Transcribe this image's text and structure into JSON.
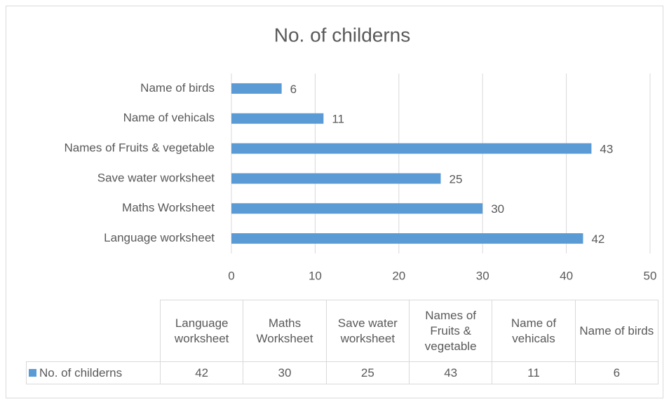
{
  "chart_data": {
    "type": "bar",
    "orientation": "horizontal",
    "title": "No. of childerns",
    "categories": [
      "Language worksheet",
      "Maths Worksheet",
      "Save water worksheet",
      "Names of Fruits & vegetable",
      "Name of vehicals",
      "Name of birds"
    ],
    "series": [
      {
        "name": "No. of childerns",
        "color": "#5b9bd5",
        "values": [
          42,
          30,
          25,
          43,
          11,
          6
        ]
      }
    ],
    "xlim": [
      0,
      50
    ],
    "xticks": [
      0,
      10,
      20,
      30,
      40,
      50
    ],
    "grid": true,
    "data_table": true
  }
}
